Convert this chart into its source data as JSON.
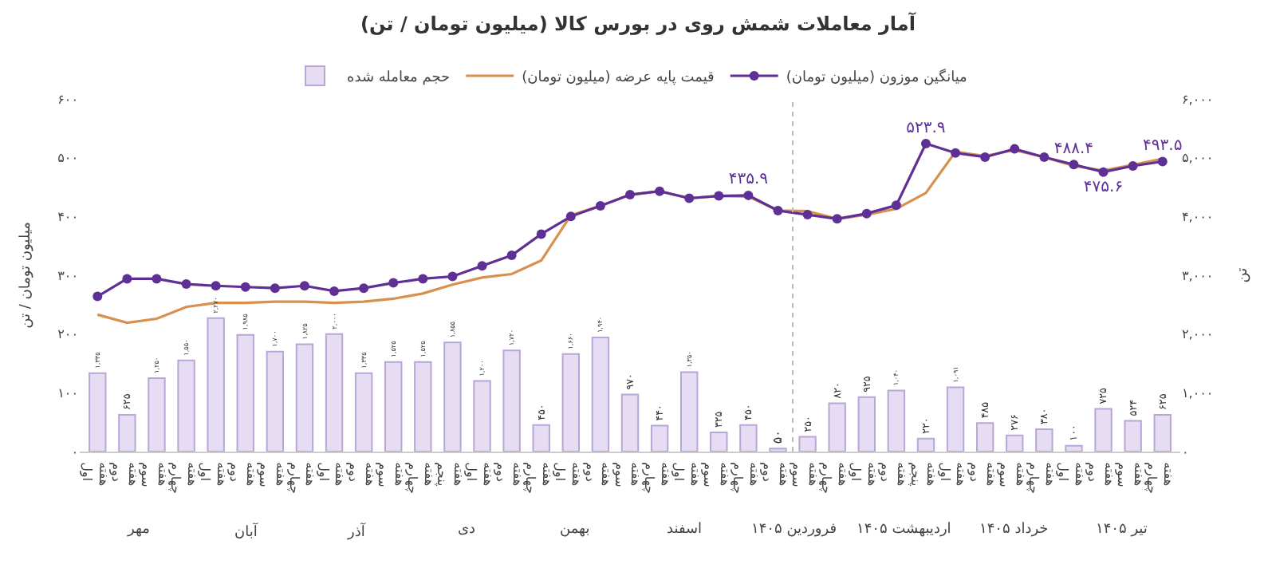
{
  "chart_data": {
    "type": "bar",
    "title": "آمار معاملات شمش روی در بورس کالا (میلیون تومان / تن)",
    "ylabel": "میلیون تومان / تن",
    "y2label": "تن",
    "categories": [
      "هفته اول",
      "هفته دوم",
      "هفته سوم",
      "هفته چهارم",
      "هفته اول",
      "هفته دوم",
      "هفته سوم",
      "هفته چهارم",
      "هفته اول",
      "هفته دوم",
      "هفته سوم",
      "هفته چهارم",
      "هفته پنجم",
      "هفته اول",
      "هفته دوم",
      "هفته چهارم",
      "هفته اول",
      "هفته دوم",
      "هفته سوم",
      "هفته چهارم",
      "هفته اول",
      "هفته سوم",
      "هفته چهارم",
      "هفته دوم",
      "هفته سوم",
      "هفته چهارم",
      "هفته اول",
      "هفته دوم",
      "هفته پنجم",
      "هفته اول",
      "هفته دوم",
      "هفته سوم",
      "هفته چهارم",
      "هفته اول",
      "هفته دوم",
      "هفته سوم",
      "هفته چهارم"
    ],
    "series": [
      {
        "name": "حجم معامله شده",
        "axis": "y2",
        "color": "#e6ddf4",
        "values": [
          1335,
          625,
          1250,
          1550,
          2270,
          1985,
          1700,
          1825,
          2000,
          1335,
          1525,
          1525,
          1855,
          1200,
          1720,
          450,
          1660,
          1940,
          970,
          440,
          1350,
          325,
          450,
          50,
          250,
          820,
          925,
          1040,
          220,
          1091,
          485,
          276,
          380,
          100,
          725,
          524,
          625
        ],
        "value_labels": [
          "۱,۳۳۵",
          "۶۲۵",
          "۱,۲۵۰",
          "۱,۵۵۰",
          "۲,۲۷۰",
          "۱,۹۸۵",
          "۱,۷۰۰",
          "۱,۸۲۵",
          "۲,۰۰۰",
          "۱,۳۳۵",
          "۱,۵۲۵",
          "۱,۵۲۵",
          "۱,۸۵۵",
          "۱,۲۰۰",
          "۱,۷۲۰",
          "۴۵۰",
          "۱,۶۶۰",
          "۱,۹۴۰",
          "۹۷۰",
          "۴۴۰",
          "۱,۳۵۰",
          "۳۲۵",
          "۴۵۰",
          "۵۰",
          "۲۵۰",
          "۸۲۰",
          "۹۲۵",
          "۱,۰۴۰",
          "۲۲۰",
          "۱,۰۹۱",
          "۴۸۵",
          "۲۷۶",
          "۳۸۰",
          "۱۰۰",
          "۷۲۵",
          "۵۲۴",
          "۶۲۵"
        ]
      },
      {
        "type": "line",
        "name": "قیمت پایه عرضه (میلیون تومان)",
        "color": "#d98f4e",
        "marker": "none",
        "values": [
          233,
          219,
          226,
          246,
          253,
          253,
          255,
          255,
          253,
          255,
          260,
          269,
          284,
          296,
          302,
          325,
          402,
          418,
          437,
          443,
          431,
          435,
          434,
          410,
          409,
          396,
          403,
          413,
          440,
          510,
          503,
          513,
          501,
          486,
          478,
          488,
          498
        ]
      },
      {
        "type": "line",
        "name": "میانگین موزون (میلیون تومان)",
        "color": "#5e2f94",
        "marker": "circle",
        "values": [
          264,
          294,
          294,
          285,
          282,
          280,
          278,
          282,
          273,
          278,
          287,
          294,
          298,
          316,
          334,
          370,
          400,
          418,
          437,
          443,
          431,
          435,
          435.9,
          410,
          403,
          396,
          405,
          419,
          523.9,
          508,
          501,
          515,
          501,
          488.4,
          475.6,
          486,
          493.5
        ],
        "value_labels": [
          null,
          null,
          null,
          null,
          null,
          null,
          null,
          null,
          null,
          null,
          null,
          null,
          null,
          null,
          null,
          null,
          null,
          null,
          null,
          null,
          null,
          null,
          "۴۳۵.۹",
          null,
          null,
          null,
          null,
          null,
          "۵۲۳.۹",
          null,
          null,
          null,
          null,
          "۴۸۸.۴",
          "۴۷۵.۶",
          null,
          "۴۹۳.۵"
        ]
      }
    ],
    "ylim": [
      0,
      600
    ],
    "yticks": [
      {
        "value": 0,
        "label": "۰"
      },
      {
        "value": 100,
        "label": "۱۰۰"
      },
      {
        "value": 200,
        "label": "۲۰۰"
      },
      {
        "value": 300,
        "label": "۳۰۰"
      },
      {
        "value": 400,
        "label": "۴۰۰"
      },
      {
        "value": 500,
        "label": "۵۰۰"
      },
      {
        "value": 600,
        "label": "۶۰۰"
      }
    ],
    "y2lim": [
      0,
      6000
    ],
    "y2ticks": [
      {
        "value": 0,
        "label": "۰"
      },
      {
        "value": 1000,
        "label": "۱,۰۰۰"
      },
      {
        "value": 2000,
        "label": "۲,۰۰۰"
      },
      {
        "value": 3000,
        "label": "۳,۰۰۰"
      },
      {
        "value": 4000,
        "label": "۴,۰۰۰"
      },
      {
        "value": 5000,
        "label": "۵,۰۰۰"
      },
      {
        "value": 6000,
        "label": "۶,۰۰۰"
      }
    ],
    "annotations": [
      "مهر",
      "آبان",
      "آذر",
      "دی",
      "بهمن",
      "اسفند",
      "فروردین ۱۴۰۵",
      "اردیبهشت ۱۴۰۵",
      "خرداد ۱۴۰۵",
      "تیر ۱۴۰۵"
    ],
    "legend": "top"
  }
}
